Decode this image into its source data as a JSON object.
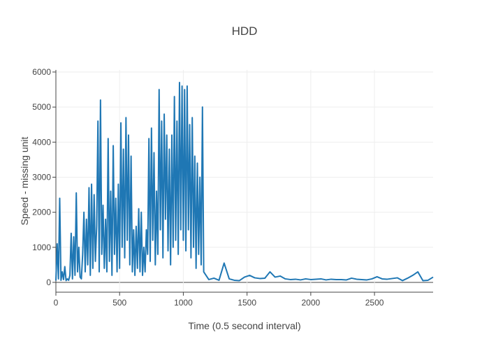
{
  "chart_data": {
    "type": "line",
    "title": "HDD",
    "x_label": "Time (0.5 second interval)",
    "y_label": "Speed - missing unit",
    "x": [
      0,
      10,
      20,
      30,
      40,
      50,
      60,
      70,
      80,
      90,
      100,
      110,
      120,
      130,
      140,
      150,
      160,
      170,
      180,
      190,
      200,
      210,
      220,
      230,
      240,
      250,
      260,
      270,
      280,
      290,
      300,
      310,
      320,
      330,
      340,
      350,
      360,
      370,
      380,
      390,
      400,
      410,
      420,
      430,
      440,
      450,
      460,
      470,
      480,
      490,
      500,
      510,
      520,
      530,
      540,
      550,
      560,
      570,
      580,
      590,
      600,
      610,
      620,
      630,
      640,
      650,
      660,
      670,
      680,
      690,
      700,
      710,
      720,
      730,
      740,
      750,
      760,
      770,
      780,
      790,
      800,
      810,
      820,
      830,
      840,
      850,
      860,
      870,
      880,
      890,
      900,
      910,
      920,
      930,
      940,
      950,
      960,
      970,
      980,
      990,
      1000,
      1010,
      1020,
      1030,
      1040,
      1050,
      1060,
      1070,
      1080,
      1090,
      1100,
      1110,
      1120,
      1130,
      1140,
      1150,
      1160,
      1200,
      1240,
      1280,
      1320,
      1360,
      1400,
      1440,
      1480,
      1520,
      1560,
      1600,
      1640,
      1680,
      1720,
      1760,
      1800,
      1840,
      1880,
      1920,
      1960,
      2000,
      2040,
      2080,
      2120,
      2160,
      2200,
      2240,
      2280,
      2320,
      2360,
      2400,
      2440,
      2480,
      2520,
      2560,
      2600,
      2640,
      2680,
      2720,
      2760,
      2800,
      2840,
      2880,
      2920,
      2960
    ],
    "series": [
      {
        "name": "HDD",
        "color": "#1f77b4",
        "values": [
          50,
          1100,
          100,
          2400,
          60,
          300,
          80,
          450,
          50,
          100,
          60,
          200,
          1400,
          100,
          1300,
          200,
          2550,
          300,
          1000,
          150,
          100,
          800,
          2000,
          300,
          1800,
          500,
          2700,
          200,
          2800,
          400,
          2500,
          600,
          1600,
          4600,
          300,
          5200,
          800,
          2200,
          400,
          1800,
          300,
          4100,
          600,
          2600,
          200,
          3900,
          800,
          2400,
          300,
          2800,
          400,
          4550,
          1000,
          3800,
          700,
          4700,
          1200,
          4200,
          500,
          3600,
          300,
          1500,
          200,
          1600,
          400,
          2100,
          300,
          2000,
          200,
          1000,
          300,
          1500,
          800,
          4100,
          600,
          4400,
          1200,
          3700,
          500,
          2600,
          800,
          5500,
          1500,
          4600,
          700,
          4800,
          1800,
          4200,
          900,
          3800,
          500,
          4200,
          1000,
          5300,
          1200,
          4600,
          800,
          5700,
          1500,
          5600,
          1200,
          5500,
          900,
          5600,
          1500,
          4500,
          700,
          4700,
          1000,
          3600,
          400,
          3400,
          800,
          3000,
          500,
          5000,
          300,
          80,
          120,
          60,
          550,
          100,
          60,
          50,
          150,
          200,
          130,
          110,
          120,
          300,
          150,
          180,
          100,
          80,
          90,
          70,
          100,
          80,
          90,
          100,
          70,
          90,
          80,
          80,
          70,
          120,
          90,
          80,
          70,
          100,
          160,
          100,
          90,
          110,
          130,
          50,
          120,
          200,
          300,
          50,
          60,
          150
        ]
      }
    ],
    "xlim": [
      0,
      2960
    ],
    "ylim": [
      -280,
      6060
    ],
    "xticks": [
      0,
      500,
      1000,
      1500,
      2000,
      2500
    ],
    "yticks": [
      0,
      1000,
      2000,
      3000,
      4000,
      5000,
      6000
    ],
    "grid": true
  }
}
